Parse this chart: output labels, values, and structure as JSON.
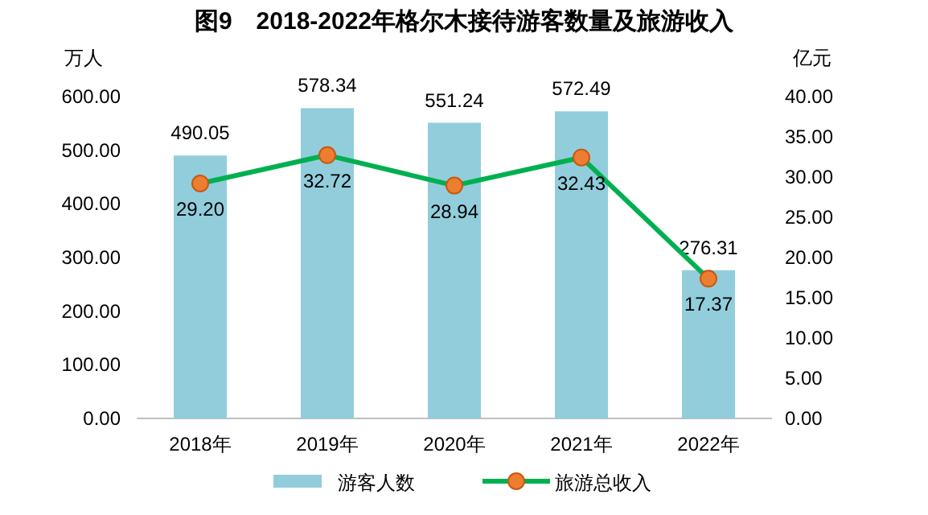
{
  "chart_data": {
    "type": "bar",
    "title": "图9　2018-2022年格尔木接待游客数量及旅游收入",
    "ylabel": "万人",
    "y2label": "亿元",
    "categories": [
      "2018年",
      "2019年",
      "2020年",
      "2021年",
      "2022年"
    ],
    "series": [
      {
        "name": "游客人数",
        "color": "#92cddc",
        "values": [
          490.05,
          578.34,
          551.24,
          572.49,
          276.31
        ],
        "value_labels": [
          "490.05",
          "578.34",
          "551.24",
          "572.49",
          "276.31"
        ]
      },
      {
        "name": "旅游总收入",
        "type": "line",
        "axis": "y2",
        "color": "#00b050",
        "colors": [
          "#ed7d31",
          "#ed7d31",
          "#ed7d31",
          "#ed7d31",
          "#ed7d31"
        ],
        "marker": "circle",
        "values": [
          29.2,
          32.72,
          28.94,
          32.43,
          17.37
        ],
        "value_labels": [
          "29.20",
          "32.72",
          "28.94",
          "32.43",
          "17.37"
        ]
      }
    ],
    "ylim": [
      0,
      600
    ],
    "yticks": [
      {
        "value": 0,
        "label": "0.00"
      },
      {
        "value": 100,
        "label": "100.00"
      },
      {
        "value": 200,
        "label": "200.00"
      },
      {
        "value": 300,
        "label": "300.00"
      },
      {
        "value": 400,
        "label": "400.00"
      },
      {
        "value": 500,
        "label": "500.00"
      },
      {
        "value": 600,
        "label": "600.00"
      }
    ],
    "y2lim": [
      0,
      40
    ],
    "y2ticks": [
      {
        "value": 0,
        "label": "0.00"
      },
      {
        "value": 5,
        "label": "5.00"
      },
      {
        "value": 10,
        "label": "10.00"
      },
      {
        "value": 15,
        "label": "15.00"
      },
      {
        "value": 20,
        "label": "20.00"
      },
      {
        "value": 25,
        "label": "25.00"
      },
      {
        "value": 30,
        "label": "30.00"
      },
      {
        "value": 35,
        "label": "35.00"
      },
      {
        "value": 40,
        "label": "40.00"
      }
    ],
    "legend": "bottom",
    "grid": false
  }
}
